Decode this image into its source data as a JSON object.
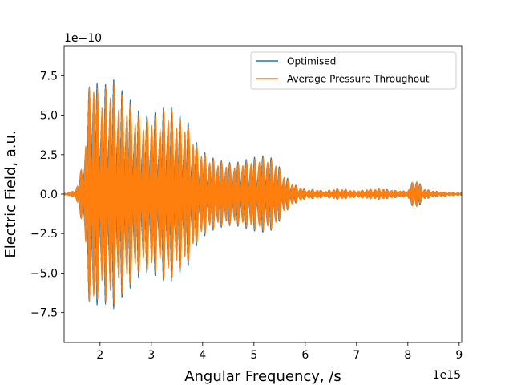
{
  "chart_data": {
    "type": "line",
    "title": "",
    "xlabel": "Angular Frequency, /s",
    "ylabel": "Electric Field, a.u.",
    "x_offset_label": "1e15",
    "y_offset_label": "1e−10",
    "xlim": [
      1.3,
      9.05
    ],
    "ylim": [
      -9.4,
      9.4
    ],
    "x_ticks": [
      2,
      3,
      4,
      5,
      6,
      7,
      8,
      9
    ],
    "x_tick_labels": [
      "2",
      "3",
      "4",
      "5",
      "6",
      "7",
      "8",
      "9"
    ],
    "y_ticks": [
      -7.5,
      -5.0,
      -2.5,
      0.0,
      2.5,
      5.0,
      7.5
    ],
    "y_tick_labels": [
      "−7.5",
      "−5.0",
      "−2.5",
      "0.0",
      "2.5",
      "5.0",
      "7.5"
    ],
    "grid": false,
    "legend_position": "top-right",
    "series": [
      {
        "name": "Optimised",
        "color": "#1f77b4",
        "envelope": {
          "x": [
            1.3,
            1.5,
            1.6,
            1.7,
            1.8,
            1.85,
            1.95,
            2.1,
            2.2,
            2.35,
            2.5,
            2.7,
            2.9,
            3.0,
            3.15,
            3.3,
            3.5,
            3.7,
            3.9,
            4.1,
            4.3,
            4.6,
            4.8,
            5.0,
            5.2,
            5.4,
            5.6,
            5.8,
            6.0,
            6.2,
            6.4,
            6.6,
            6.8,
            7.0,
            7.2,
            7.5,
            7.7,
            7.9,
            8.0,
            8.1,
            8.2,
            8.3,
            8.5,
            8.8,
            9.05
          ],
          "amplitude": [
            0.05,
            0.2,
            1.0,
            3.0,
            7.5,
            8.8,
            7.0,
            7.0,
            7.8,
            6.8,
            6.5,
            5.5,
            5.0,
            5.5,
            5.0,
            6.0,
            5.2,
            4.8,
            3.2,
            2.5,
            2.2,
            2.0,
            2.2,
            2.4,
            2.5,
            2.3,
            1.2,
            0.6,
            0.3,
            0.3,
            0.2,
            0.35,
            0.3,
            0.2,
            0.3,
            0.35,
            0.25,
            0.2,
            0.2,
            0.9,
            0.9,
            0.35,
            0.2,
            0.12,
            0.08
          ]
        }
      },
      {
        "name": "Average Pressure Throughout",
        "color": "#ff7f0e",
        "envelope": {
          "x": [
            1.3,
            1.5,
            1.6,
            1.7,
            1.8,
            1.85,
            1.95,
            2.1,
            2.2,
            2.35,
            2.5,
            2.7,
            2.9,
            3.0,
            3.15,
            3.3,
            3.5,
            3.7,
            3.9,
            4.1,
            4.3,
            4.6,
            4.8,
            5.0,
            5.2,
            5.4,
            5.6,
            5.8,
            6.0,
            6.2,
            6.4,
            6.6,
            6.8,
            7.0,
            7.2,
            7.5,
            7.7,
            7.9,
            8.0,
            8.1,
            8.2,
            8.3,
            8.5,
            8.8,
            9.05
          ],
          "amplitude": [
            0.05,
            0.2,
            1.0,
            3.0,
            7.5,
            8.8,
            7.0,
            7.0,
            7.8,
            6.8,
            6.5,
            5.5,
            5.0,
            5.5,
            5.0,
            6.0,
            5.2,
            4.8,
            3.2,
            2.5,
            2.2,
            2.0,
            2.2,
            2.4,
            2.5,
            2.3,
            1.2,
            0.6,
            0.3,
            0.3,
            0.2,
            0.35,
            0.3,
            0.2,
            0.3,
            0.35,
            0.25,
            0.2,
            0.2,
            0.9,
            0.9,
            0.35,
            0.2,
            0.12,
            0.08
          ]
        }
      }
    ]
  }
}
